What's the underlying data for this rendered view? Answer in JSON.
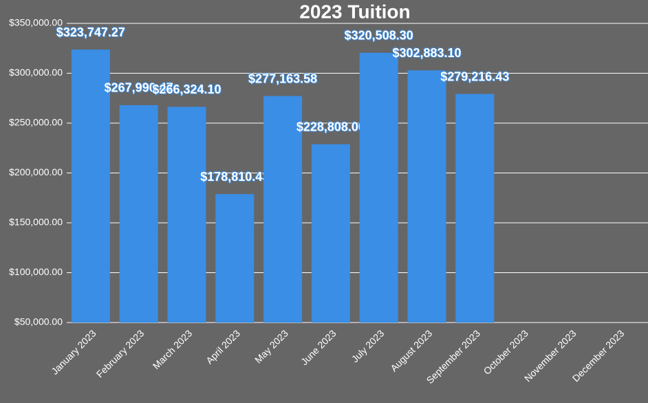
{
  "chart_data": {
    "type": "bar",
    "title": "2023 Tuition",
    "categories": [
      "January 2023",
      "February 2023",
      "March 2023",
      "April 2023",
      "May 2023",
      "June 2023",
      "July 2023",
      "August 2023",
      "September 2023",
      "October 2023",
      "November 2023",
      "December 2023"
    ],
    "values": [
      323747.27,
      267990.47,
      266324.1,
      178810.43,
      277163.58,
      228808.0,
      320508.3,
      302883.1,
      279216.43,
      null,
      null,
      null
    ],
    "value_labels": [
      "$323,747.27",
      "$267,990.47",
      "$266,324.10",
      "$178,810.43",
      "$277,163.58",
      "$228,808.00",
      "$320,508.30",
      "$302,883.10",
      "$279,216.43",
      null,
      null,
      null
    ],
    "color": "#3a8ee6",
    "ylim": [
      50000,
      350000
    ],
    "yticks": [
      {
        "value": 50000,
        "label": "$50,000.00"
      },
      {
        "value": 100000,
        "label": "$100,000.00"
      },
      {
        "value": 150000,
        "label": "$150,000.00"
      },
      {
        "value": 200000,
        "label": "$200,000.00"
      },
      {
        "value": 250000,
        "label": "$250,000.00"
      },
      {
        "value": 300000,
        "label": "$300,000.00"
      },
      {
        "value": 350000,
        "label": "$350,000.00"
      }
    ],
    "grid": true
  }
}
